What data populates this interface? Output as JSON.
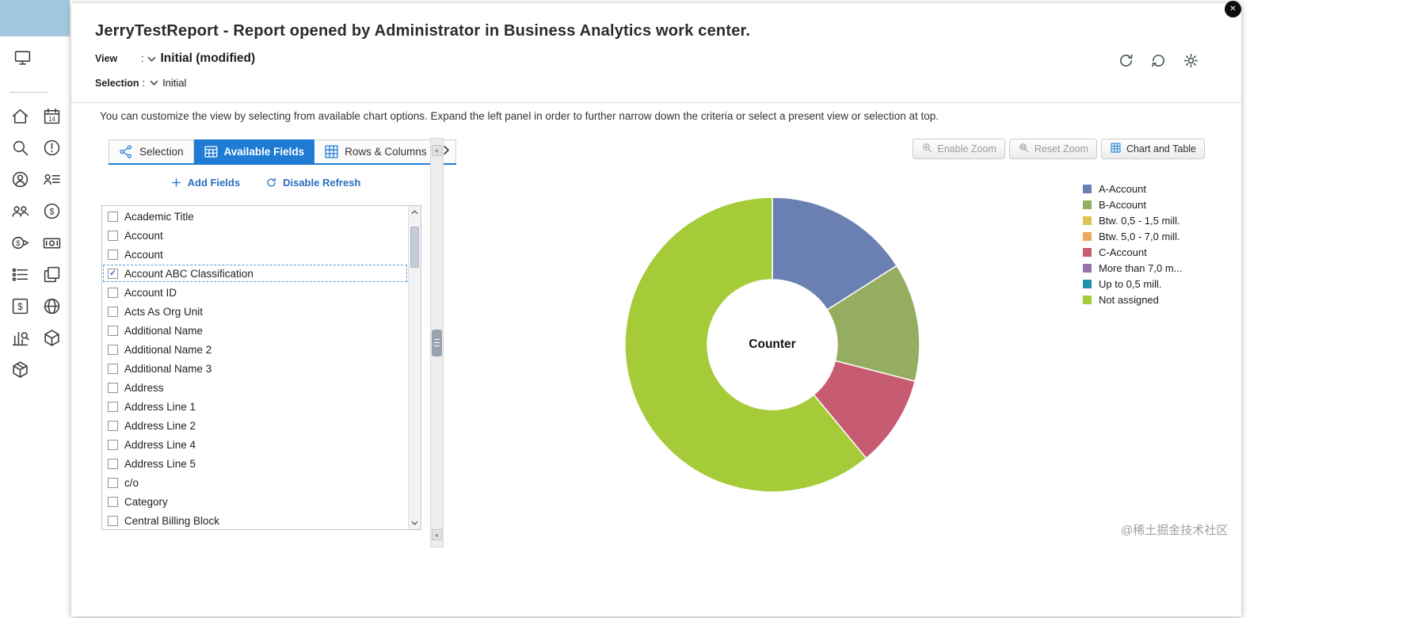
{
  "header": {
    "title": "JerryTestReport - Report opened by Administrator in Business Analytics work center.",
    "view_label": "View",
    "view_colon": ":",
    "view_value": "Initial (modified)",
    "selection_label": "Selection",
    "selection_colon": ":",
    "selection_value": "Initial"
  },
  "header_actions": [
    {
      "name": "refresh",
      "icon": "refresh"
    },
    {
      "name": "refresh-back",
      "icon": "refresh-back"
    },
    {
      "name": "settings",
      "icon": "gear"
    }
  ],
  "info_text": "You can customize the view by selecting from available chart options. Expand the left panel in order to further narrow down the criteria or select a present view or selection at top.",
  "tabs": [
    {
      "label": "Selection",
      "icon": "selection-tab",
      "active": false
    },
    {
      "label": "Available Fields",
      "icon": "table",
      "active": true
    },
    {
      "label": "Rows & Columns",
      "icon": "grid",
      "active": false
    }
  ],
  "field_actions": {
    "add": "Add Fields",
    "refresh_toggle": "Disable Refresh"
  },
  "fields": [
    {
      "label": "Academic Title",
      "checked": false,
      "selected": false
    },
    {
      "label": "Account",
      "checked": false,
      "selected": false
    },
    {
      "label": "Account",
      "checked": false,
      "selected": false
    },
    {
      "label": "Account ABC Classification",
      "checked": true,
      "selected": true
    },
    {
      "label": "Account ID",
      "checked": false,
      "selected": false
    },
    {
      "label": "Acts As Org Unit",
      "checked": false,
      "selected": false
    },
    {
      "label": "Additional Name",
      "checked": false,
      "selected": false
    },
    {
      "label": "Additional Name 2",
      "checked": false,
      "selected": false
    },
    {
      "label": "Additional Name 3",
      "checked": false,
      "selected": false
    },
    {
      "label": "Address",
      "checked": false,
      "selected": false
    },
    {
      "label": "Address Line 1",
      "checked": false,
      "selected": false
    },
    {
      "label": "Address Line 2",
      "checked": false,
      "selected": false
    },
    {
      "label": "Address Line 4",
      "checked": false,
      "selected": false
    },
    {
      "label": "Address Line 5",
      "checked": false,
      "selected": false
    },
    {
      "label": "c/o",
      "checked": false,
      "selected": false
    },
    {
      "label": "Category",
      "checked": false,
      "selected": false
    },
    {
      "label": "Central Billing Block",
      "checked": false,
      "selected": false
    }
  ],
  "chart_toolbar": [
    {
      "label": "Enable Zoom",
      "icon": "zoom-in",
      "enabled": false
    },
    {
      "label": "Reset Zoom",
      "icon": "reset-zoom",
      "enabled": false
    },
    {
      "label": "Chart and Table",
      "icon": "chart-table",
      "enabled": true
    }
  ],
  "chart_data": {
    "type": "pie",
    "donut": true,
    "center_label": "Counter",
    "legend_position": "right",
    "segments": [
      {
        "label": "A-Account",
        "value": 16,
        "color": "#6b80b2"
      },
      {
        "label": "B-Account",
        "value": 13,
        "color": "#94ad60"
      },
      {
        "label": "C-Account",
        "value": 10,
        "color": "#c75b72"
      },
      {
        "label": "Not assigned",
        "value": 61,
        "color": "#a5cb39"
      }
    ],
    "legend": [
      {
        "label": "A-Account",
        "color": "#6b80b2"
      },
      {
        "label": "B-Account",
        "color": "#94ad60"
      },
      {
        "label": "Btw. 0,5 - 1,5 mill.",
        "color": "#ddc254"
      },
      {
        "label": "Btw. 5,0 - 7,0 mill.",
        "color": "#eda55f"
      },
      {
        "label": "C-Account",
        "color": "#c75b72"
      },
      {
        "label": "More than 7,0 m...",
        "color": "#9473a8"
      },
      {
        "label": "Up to 0,5 mill.",
        "color": "#2191a8"
      },
      {
        "label": "Not assigned",
        "color": "#a5cb39"
      }
    ]
  },
  "sidebar": {
    "top_icon": "monitor",
    "grid_icons": [
      "home",
      "calendar",
      "search",
      "alert",
      "person",
      "person-list",
      "people",
      "money-circle",
      "money-transfer",
      "banknote",
      "list",
      "pages",
      "dollar-box",
      "globe",
      "chart-search",
      "cube",
      "package"
    ]
  },
  "misc": {
    "close_glyph": "✕",
    "collapse_left_glyph": "«",
    "check_glyph": "✓"
  },
  "watermark": "@稀土掘金技术社区"
}
